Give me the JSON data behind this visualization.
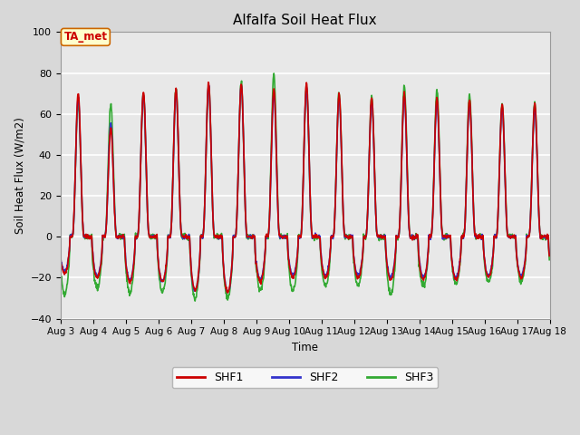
{
  "title": "Alfalfa Soil Heat Flux",
  "ylabel": "Soil Heat Flux (W/m2)",
  "xlabel": "Time",
  "ylim": [
    -40,
    100
  ],
  "xlim_days": [
    3,
    18
  ],
  "background_color": "#d8d8d8",
  "plot_bg_color": "#e8e8e8",
  "grid_color": "white",
  "shf1_color": "#cc0000",
  "shf2_color": "#3333cc",
  "shf3_color": "#33aa33",
  "line_width": 1.2,
  "x_tick_labels": [
    "Aug 3",
    "Aug 4",
    "Aug 5",
    "Aug 6",
    "Aug 7",
    "Aug 8",
    "Aug 9",
    "Aug 10",
    "Aug 11",
    "Aug 12",
    "Aug 13",
    "Aug 14",
    "Aug 15",
    "Aug 16",
    "Aug 17",
    "Aug 18"
  ],
  "annotation_text": "TA_met",
  "annotation_color": "#cc0000",
  "annotation_bg": "#ffffcc",
  "annotation_border": "#cc6600",
  "peaks1": [
    70,
    53,
    71,
    72,
    75,
    75,
    72,
    75,
    70,
    68,
    70,
    68,
    67,
    65,
    65
  ],
  "peaks2": [
    68,
    55,
    70,
    71,
    74,
    74,
    70,
    73,
    68,
    66,
    68,
    66,
    65,
    63,
    63
  ],
  "peaks3": [
    66,
    65,
    70,
    72,
    74,
    75,
    80,
    73,
    70,
    68,
    74,
    72,
    69,
    65,
    65
  ],
  "troughs1": [
    -18,
    -20,
    -22,
    -22,
    -26,
    -27,
    -22,
    -20,
    -20,
    -20,
    -21,
    -21,
    -21,
    -20,
    -20
  ],
  "troughs2": [
    -17,
    -19,
    -21,
    -22,
    -26,
    -27,
    -21,
    -19,
    -19,
    -19,
    -20,
    -20,
    -20,
    -19,
    -19
  ],
  "troughs3": [
    -28,
    -25,
    -27,
    -27,
    -30,
    -30,
    -26,
    -26,
    -24,
    -24,
    -28,
    -24,
    -23,
    -22,
    -22
  ]
}
